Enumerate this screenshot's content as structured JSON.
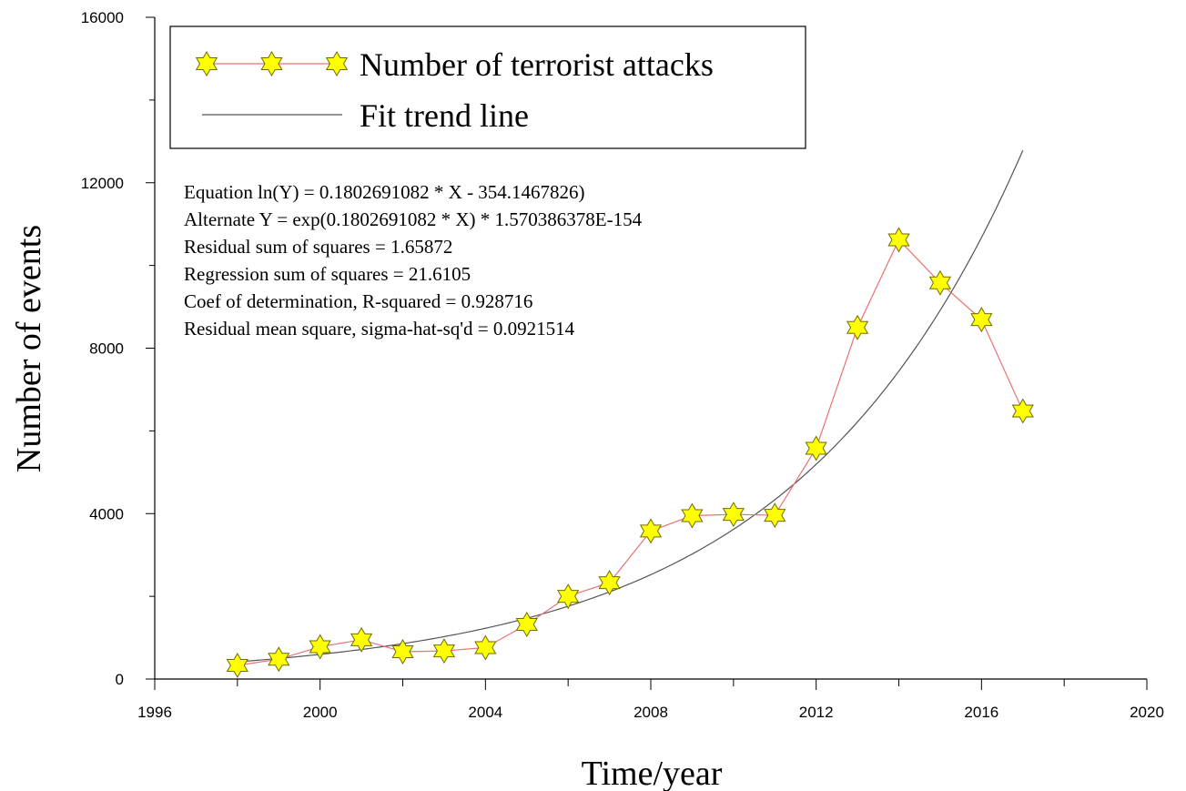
{
  "chart_data": {
    "type": "line",
    "xlabel": "Time/year",
    "ylabel": "Number of events",
    "xlim": [
      1996,
      2020
    ],
    "ylim": [
      0,
      16000
    ],
    "x_major_ticks": [
      1996,
      2000,
      2004,
      2008,
      2012,
      2016,
      2020
    ],
    "x_minor_step": 2,
    "y_major_ticks": [
      0,
      4000,
      8000,
      12000,
      16000
    ],
    "y_minor_step": 2000,
    "grid": false,
    "legend": {
      "position": "top-left",
      "entries": [
        {
          "label": "Number of terrorist attacks",
          "style": "line-star-marker"
        },
        {
          "label": "Fit trend line",
          "style": "line"
        }
      ]
    },
    "series": [
      {
        "name": "Number of terrorist attacks",
        "x": [
          1998,
          1999,
          2000,
          2001,
          2002,
          2003,
          2004,
          2005,
          2006,
          2007,
          2008,
          2009,
          2010,
          2011,
          2012,
          2013,
          2014,
          2015,
          2016,
          2017
        ],
        "values": [
          330,
          480,
          780,
          950,
          660,
          680,
          760,
          1320,
          2000,
          2330,
          3580,
          3950,
          3980,
          3960,
          5580,
          8500,
          10620,
          9580,
          8690,
          6480
        ],
        "line_color": "#e8736f",
        "marker": "star",
        "marker_fill": "#ffff00",
        "marker_stroke": "#6e6e00"
      },
      {
        "name": "Fit trend line",
        "type": "exponential-fit",
        "coef_a": 0.1802691082,
        "coef_b": 1.570386378e-154,
        "x_range": [
          1998,
          2017
        ],
        "line_color": "#555555"
      }
    ],
    "annotations": [
      "Equation ln(Y) = 0.1802691082 * X - 354.1467826)",
      "Alternate Y = exp(0.1802691082 * X) * 1.570386378E-154",
      "Residual sum of squares = 1.65872",
      "Regression sum of squares = 21.6105",
      "Coef of determination, R-squared = 0.928716",
      "Residual mean square, sigma-hat-sq'd = 0.0921514"
    ]
  }
}
